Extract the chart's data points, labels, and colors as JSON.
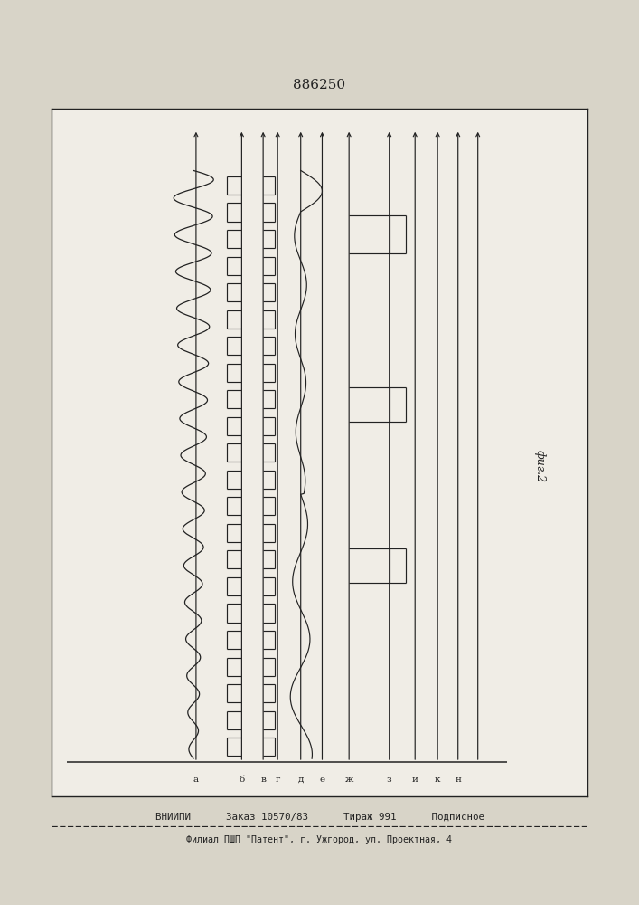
{
  "title": "886250",
  "fig_label": "фиг.2",
  "footer_line1": "ВНИИПИ      Заказ 10570/83      Тираж 991      Подписное",
  "footer_line2": "Филиал ПШП \"Патент\", г. Ужгород, ул. Проектная, 4",
  "bg_color": "#d8d4c8",
  "box_color": "#f0ede6",
  "line_color": "#222222",
  "n_sine_cycles": 16,
  "n_sq_pulses": 22,
  "sine_amp_max": 0.38,
  "sine_amp_min": 0.08,
  "noisy_freq": 6,
  "noisy_amp": 0.12,
  "spike_amp": 0.4
}
